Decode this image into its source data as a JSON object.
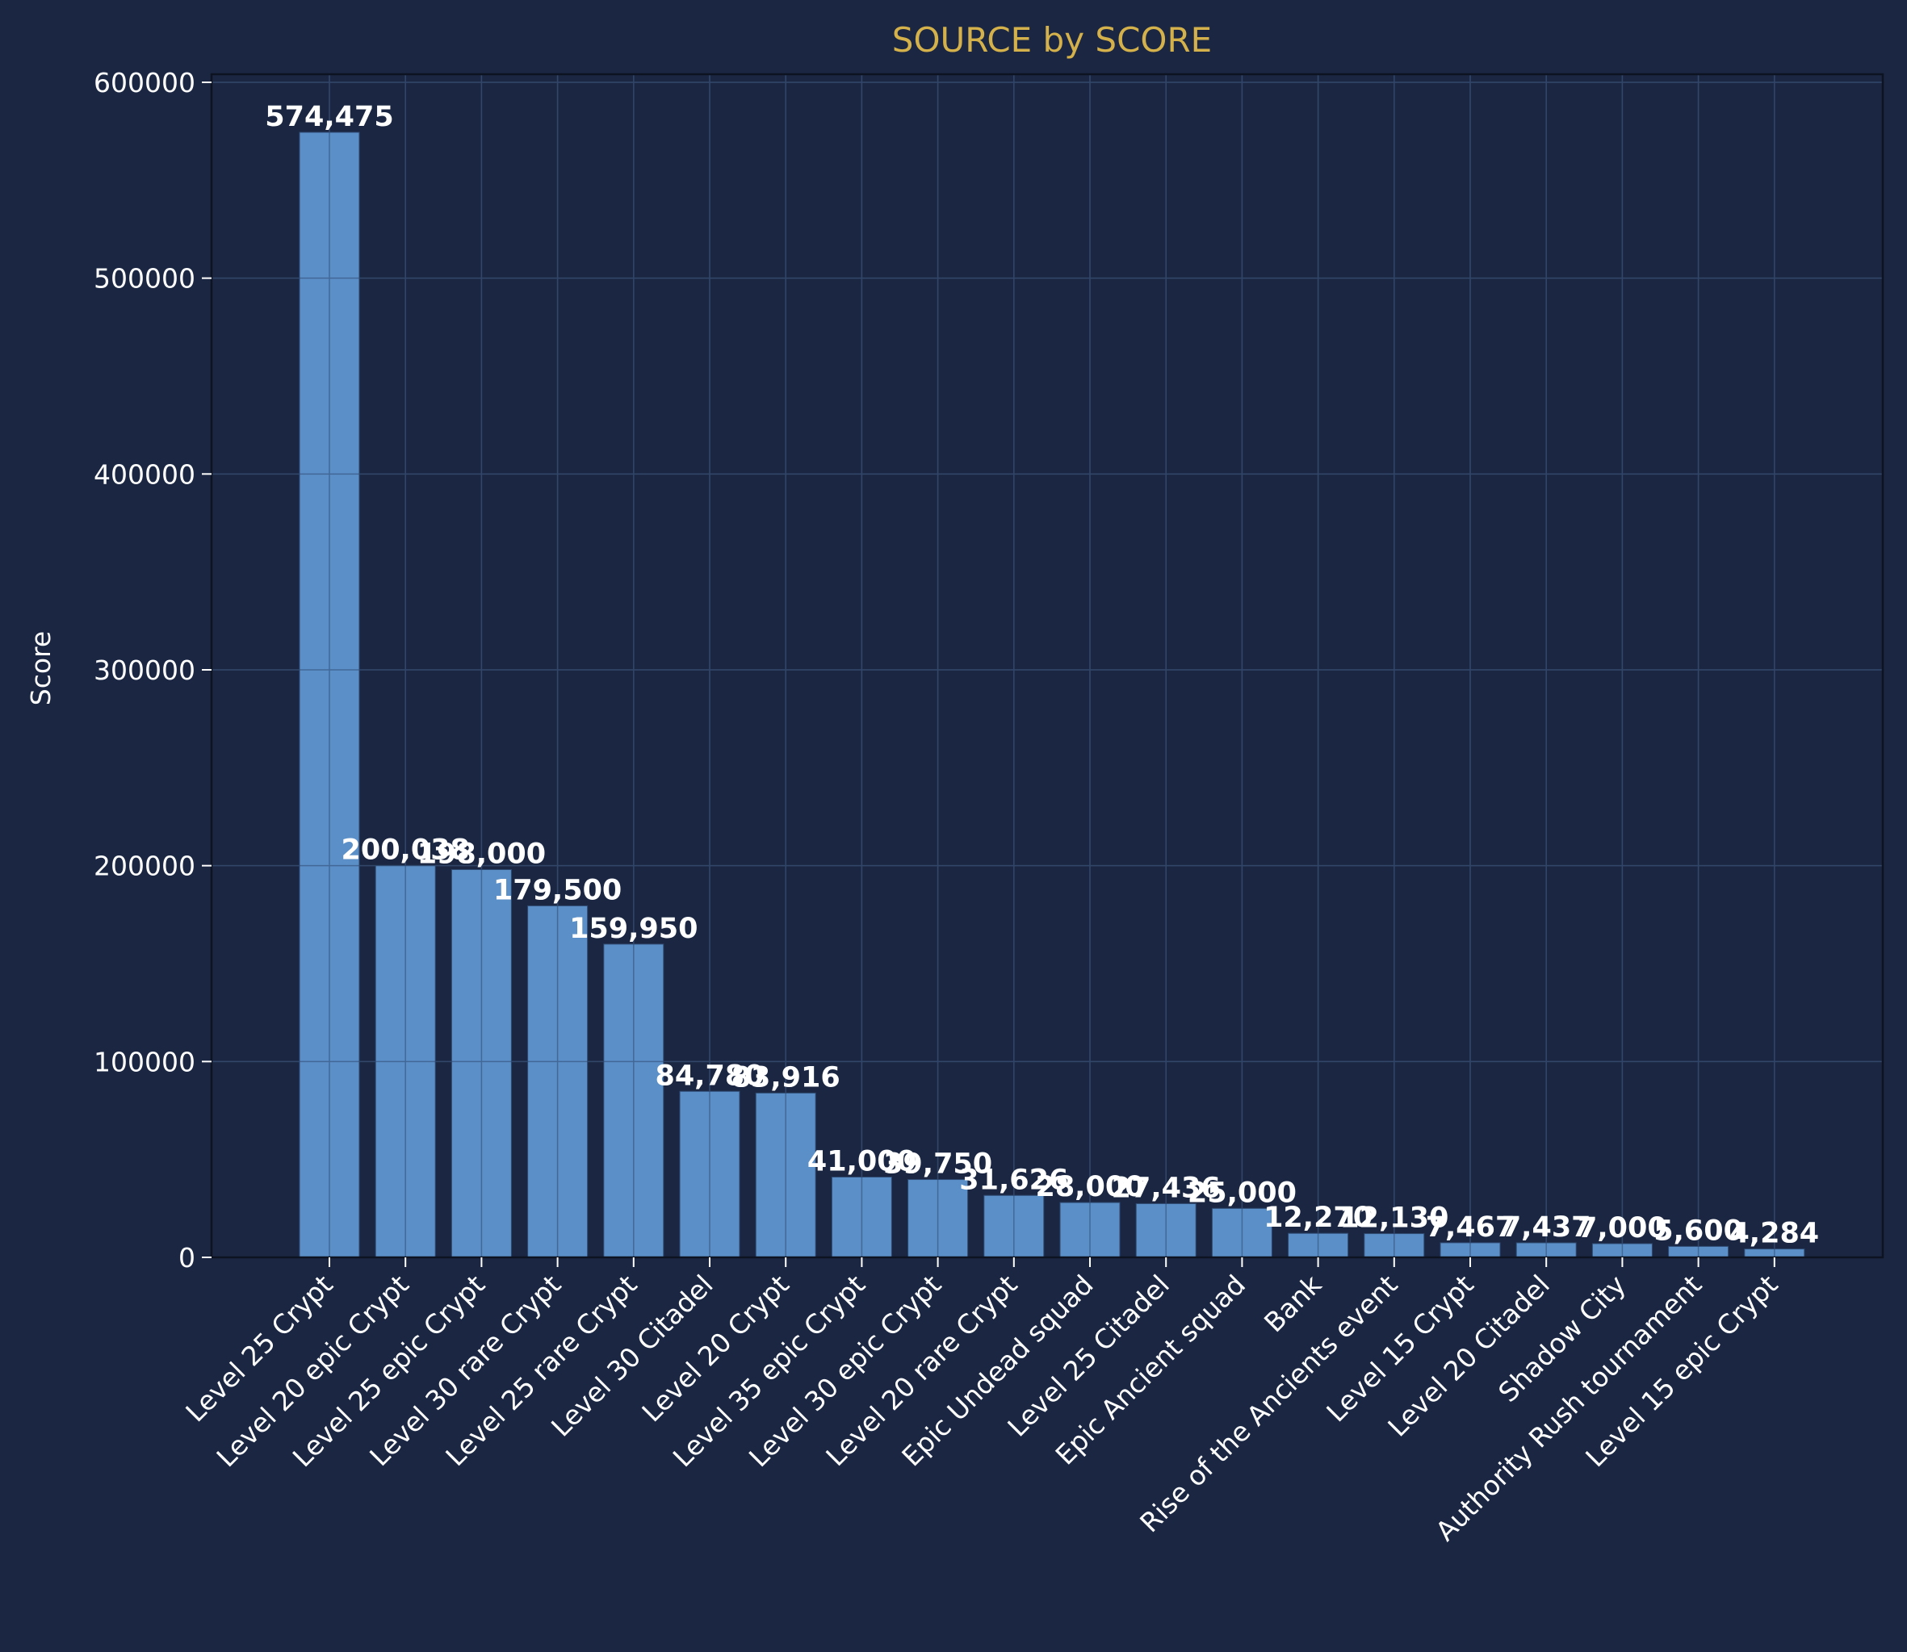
{
  "chart_data": {
    "type": "bar",
    "title": "SOURCE by SCORE",
    "xlabel": "",
    "ylabel": "Score",
    "ylim": [
      0,
      600000
    ],
    "yticks": [
      0,
      100000,
      200000,
      300000,
      400000,
      500000,
      600000
    ],
    "ytick_labels": [
      "0",
      "100000",
      "200000",
      "300000",
      "400000",
      "500000",
      "600000"
    ],
    "grid": true,
    "legend": "none",
    "categories": [
      "Level 25 Crypt",
      "Level 20 epic Crypt",
      "Level 25 epic Crypt",
      "Level 30 rare Crypt",
      "Level 25 rare Crypt",
      "Level 30 Citadel",
      "Level 20 Crypt",
      "Level 35 epic Crypt",
      "Level 30 epic Crypt",
      "Level 20 rare Crypt",
      "Epic Undead squad",
      "Level 25 Citadel",
      "Epic Ancient squad",
      "Bank",
      "Rise of the Ancients event",
      "Level 15 Crypt",
      "Level 20 Citadel",
      "Shadow City",
      "Authority Rush tournament",
      "Level 15 epic Crypt"
    ],
    "values": [
      574475,
      200038,
      198000,
      179500,
      159950,
      84780,
      83916,
      41000,
      39750,
      31626,
      28000,
      27436,
      25000,
      12270,
      12130,
      7467,
      7437,
      7000,
      5600,
      4284
    ],
    "value_labels": [
      "574,475",
      "200,038",
      "198,000",
      "179,500",
      "159,950",
      "84,780",
      "83,916",
      "41,000",
      "39,750",
      "31,626",
      "28,000",
      "27,436",
      "25,000",
      "12,270",
      "12,130",
      "7,467",
      "7,437",
      "7,000",
      "5,600",
      "4,284"
    ],
    "colors": {
      "background": "#1b2742",
      "bar": "#5b8fc7",
      "bar_edge": "#2f4a72",
      "title": "#d4b14a",
      "text": "#ffffff",
      "grid": "#34425e",
      "axis": "#0d1320"
    }
  }
}
